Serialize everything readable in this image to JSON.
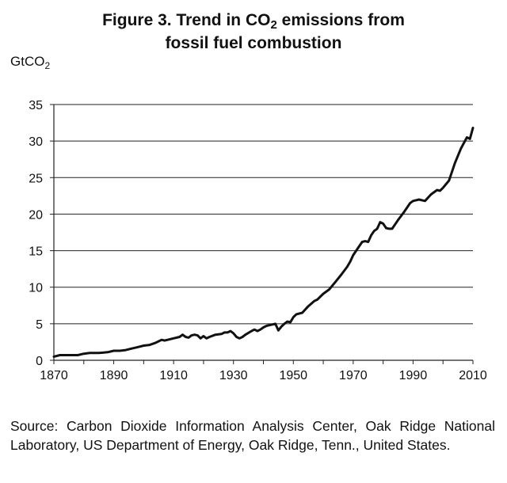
{
  "figure": {
    "title_line1_pre": "Figure 3. Trend in CO",
    "title_line1_sub": "2",
    "title_line1_post": " emissions from",
    "title_line2": "fossil fuel combustion",
    "unit_main": "GtCO",
    "unit_sub": "2",
    "source": "Source: Carbon Dioxide Information Analysis Center, Oak Ridge National Laboratory, US Department of Energy, Oak Ridge, Tenn., United States."
  },
  "chart_data": {
    "type": "line",
    "title": "Figure 3. Trend in CO2 emissions from fossil fuel combustion",
    "xlabel": "",
    "ylabel": "GtCO2",
    "xlim": [
      1870,
      2010
    ],
    "ylim": [
      0,
      35
    ],
    "x_ticks": [
      1870,
      1890,
      1910,
      1930,
      1950,
      1970,
      1990,
      2010
    ],
    "y_ticks": [
      0,
      5,
      10,
      15,
      20,
      25,
      30,
      35
    ],
    "grid": "horizontal",
    "line_color": "#111111",
    "series": [
      {
        "x": [
          1870,
          1872,
          1875,
          1878,
          1880,
          1882,
          1885,
          1888,
          1890,
          1892,
          1894,
          1896,
          1898,
          1900,
          1902,
          1904,
          1906,
          1907,
          1908,
          1910,
          1912,
          1913,
          1914,
          1915,
          1916,
          1917,
          1918,
          1919,
          1920,
          1921,
          1922,
          1924,
          1926,
          1927,
          1928,
          1929,
          1930,
          1931,
          1932,
          1933,
          1934,
          1936,
          1937,
          1938,
          1939,
          1940,
          1941,
          1942,
          1943,
          1944,
          1945,
          1946,
          1947,
          1948,
          1949,
          1950,
          1951,
          1953,
          1955,
          1957,
          1958,
          1960,
          1962,
          1964,
          1966,
          1968,
          1969,
          1970,
          1972,
          1973,
          1974,
          1975,
          1976,
          1977,
          1978,
          1979,
          1980,
          1981,
          1982,
          1983,
          1985,
          1987,
          1989,
          1990,
          1992,
          1994,
          1996,
          1998,
          1999,
          2000,
          2002,
          2004,
          2006,
          2008,
          2009,
          2010
        ],
        "y": [
          0.5,
          0.7,
          0.7,
          0.7,
          0.9,
          1.0,
          1.0,
          1.1,
          1.3,
          1.3,
          1.4,
          1.6,
          1.8,
          2.0,
          2.1,
          2.4,
          2.8,
          2.7,
          2.8,
          3.0,
          3.2,
          3.5,
          3.2,
          3.1,
          3.4,
          3.5,
          3.4,
          3.0,
          3.3,
          3.0,
          3.2,
          3.5,
          3.6,
          3.8,
          3.8,
          4.0,
          3.7,
          3.2,
          3.0,
          3.2,
          3.5,
          4.0,
          4.2,
          4.0,
          4.2,
          4.5,
          4.7,
          4.8,
          4.9,
          5.0,
          4.1,
          4.6,
          5.0,
          5.3,
          5.2,
          5.9,
          6.3,
          6.5,
          7.4,
          8.1,
          8.3,
          9.1,
          9.7,
          10.7,
          11.7,
          12.8,
          13.5,
          14.4,
          15.6,
          16.2,
          16.3,
          16.2,
          17.1,
          17.7,
          18.0,
          18.9,
          18.7,
          18.1,
          18.0,
          18.0,
          19.2,
          20.3,
          21.5,
          21.8,
          22.0,
          21.8,
          22.7,
          23.3,
          23.2,
          23.6,
          24.6,
          27.0,
          29.0,
          30.5,
          30.3,
          31.8
        ]
      }
    ]
  }
}
